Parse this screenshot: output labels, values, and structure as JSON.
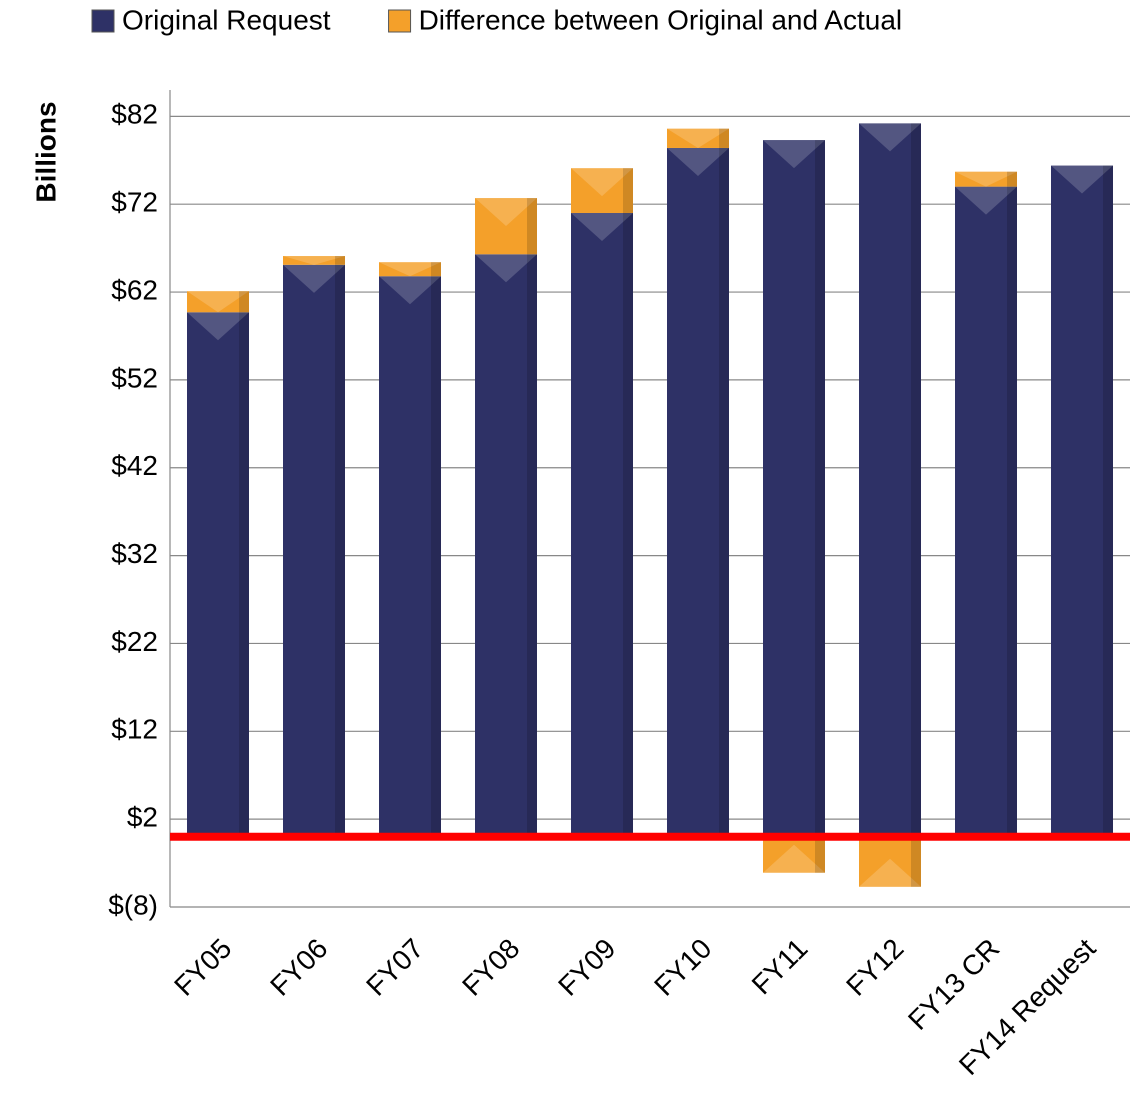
{
  "chart_data": {
    "type": "bar",
    "stacked": true,
    "y_label": "Billions",
    "categories": [
      "FY05",
      "FY06",
      "FY07",
      "FY08",
      "FY09",
      "FY10",
      "FY11",
      "FY12",
      "FY13 CR",
      "FY14 Request"
    ],
    "series": [
      {
        "name": "Original Request",
        "color": "#2e3166",
        "values": [
          59.7,
          65.1,
          63.8,
          66.3,
          71.0,
          78.4,
          79.3,
          81.2,
          74.0,
          76.4
        ]
      },
      {
        "name": "Difference between Original and Actual",
        "color": "#f4a02a",
        "values": [
          2.4,
          1.0,
          1.6,
          6.4,
          5.1,
          2.2,
          -4.1,
          -5.7,
          1.7,
          0
        ]
      }
    ],
    "ylim": [
      -8,
      85
    ],
    "yticks": [
      {
        "value": -8,
        "label": "$(8)"
      },
      {
        "value": 2,
        "label": "$2"
      },
      {
        "value": 12,
        "label": "$12"
      },
      {
        "value": 22,
        "label": "$22"
      },
      {
        "value": 32,
        "label": "$32"
      },
      {
        "value": 42,
        "label": "$42"
      },
      {
        "value": 52,
        "label": "$52"
      },
      {
        "value": 62,
        "label": "$62"
      },
      {
        "value": 72,
        "label": "$72"
      },
      {
        "value": 82,
        "label": "$82"
      }
    ],
    "grid": true,
    "zero_line_color": "#ff0000",
    "legend": "top"
  }
}
